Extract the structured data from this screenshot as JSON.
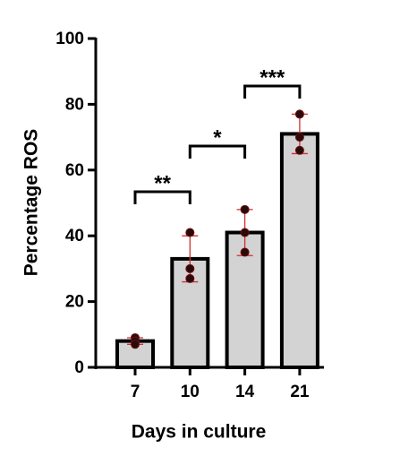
{
  "chart_data": {
    "type": "bar",
    "xlabel": "Days in culture",
    "ylabel": "Percentage ROS",
    "categories": [
      "7",
      "10",
      "14",
      "21"
    ],
    "values": [
      8,
      33,
      41,
      71
    ],
    "errors": [
      1,
      7,
      7,
      6
    ],
    "points": [
      [
        9,
        8,
        7
      ],
      [
        41,
        30,
        27
      ],
      [
        48,
        41,
        35
      ],
      [
        77,
        70,
        66
      ]
    ],
    "color": "#d3d3d3",
    "error_color": "#d0302f",
    "ylim": [
      0,
      100
    ],
    "yticks": [
      0,
      20,
      40,
      60,
      80,
      100
    ],
    "annotations": [
      "**",
      "*",
      "***"
    ]
  }
}
